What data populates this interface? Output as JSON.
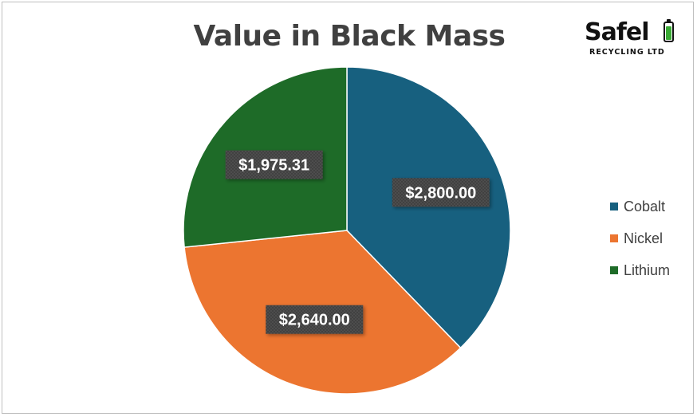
{
  "chart_data": {
    "type": "pie",
    "title": "Value in Black Mass",
    "categories": [
      "Cobalt",
      "Nickel",
      "Lithium"
    ],
    "values": [
      2800.0,
      2640.0,
      1975.31
    ],
    "data_labels": [
      "$2,800.00",
      "$2,640.00",
      "$1,975.31"
    ],
    "colors": [
      "#17607f",
      "#ec7530",
      "#1e6b28"
    ],
    "legend_position": "right",
    "start_angle": "12 o'clock",
    "direction": "clockwise"
  },
  "logo": {
    "name": "SafeLi",
    "wordmark": "Safel",
    "subtitle": "RECYCLING LTD",
    "battery_icon": "battery-icon"
  }
}
